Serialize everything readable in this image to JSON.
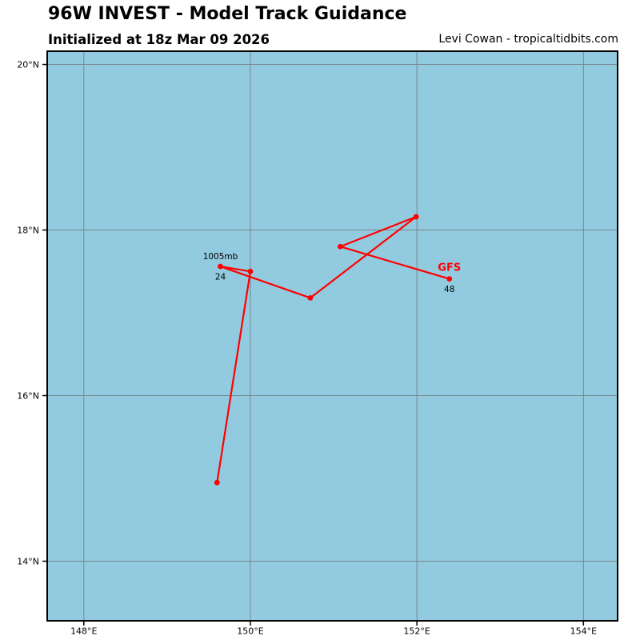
{
  "header": {
    "title": "96W INVEST - Model Track Guidance",
    "subtitle": "Initialized at 18z Mar 09 2026",
    "credit": "Levi Cowan - tropicaltidbits.com"
  },
  "chart_data": {
    "type": "line",
    "subtype": "tropical-cyclone-model-track-map",
    "title": "96W INVEST - Model Track Guidance",
    "subtitle": "Initialized at 18z Mar 09 2026",
    "credit": "Levi Cowan - tropicaltidbits.com",
    "grid": true,
    "lon_range": [
      147.56,
      154.41
    ],
    "lat_range": [
      13.28,
      20.16
    ],
    "x_ticks": [
      {
        "value": 148,
        "label": "148°E"
      },
      {
        "value": 150,
        "label": "150°E"
      },
      {
        "value": 152,
        "label": "152°E"
      },
      {
        "value": 154,
        "label": "154°E"
      }
    ],
    "y_ticks": [
      {
        "value": 14,
        "label": "14°N"
      },
      {
        "value": 16,
        "label": "16°N"
      },
      {
        "value": 18,
        "label": "18°N"
      },
      {
        "value": 20,
        "label": "20°N"
      }
    ],
    "colors": {
      "ocean": "#92CBDF",
      "grid": "#78858E",
      "border": "#000000",
      "track": "#FF0000",
      "label_text": "#000000"
    },
    "series": [
      {
        "name": "GFS",
        "color": "#FF0000",
        "points": [
          {
            "lon": 149.6,
            "lat": 14.95
          },
          {
            "lon": 150.0,
            "lat": 17.5
          },
          {
            "lon": 149.64,
            "lat": 17.56,
            "pressure_label": "1005mb",
            "hour_label": "24"
          },
          {
            "lon": 150.72,
            "lat": 17.18
          },
          {
            "lon": 151.99,
            "lat": 18.16
          },
          {
            "lon": 151.08,
            "lat": 17.8
          },
          {
            "lon": 152.39,
            "lat": 17.41,
            "model_label": "GFS",
            "hour_label": "48"
          }
        ]
      }
    ]
  }
}
